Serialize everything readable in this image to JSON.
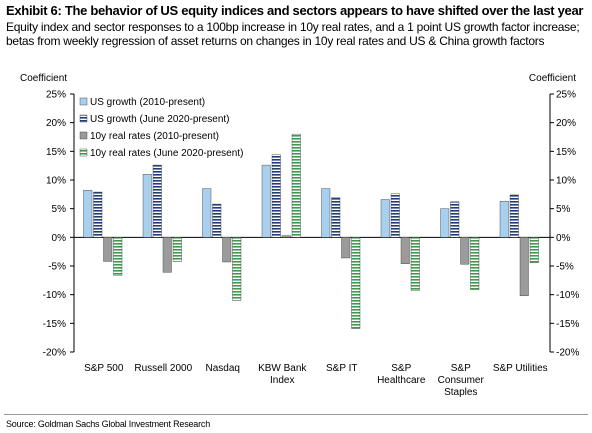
{
  "exhibit": {
    "title": "Exhibit 6: The behavior of US equity indices and sectors appears to have shifted over the last year",
    "subtitle": "Equity index and sector responses to a 100bp increase in 10y real rates, and a 1 point US growth factor increase; betas from weekly regression of asset returns on changes in 10y real rates and US & China growth factors",
    "source": "Source: Goldman Sachs Global Investment Research"
  },
  "chart_data": {
    "type": "bar",
    "left_axis_label": "Coefficient",
    "right_axis_label": "Coefficient",
    "ylim": [
      -20,
      25
    ],
    "yticks": [
      "25%",
      "20%",
      "15%",
      "10%",
      "5%",
      "0%",
      "-5%",
      "-10%",
      "-15%",
      "-20%"
    ],
    "ytick_values": [
      25,
      20,
      15,
      10,
      5,
      0,
      -5,
      -10,
      -15,
      -20
    ],
    "categories": [
      [
        "S&P 500"
      ],
      [
        "Russell 2000"
      ],
      [
        "Nasdaq"
      ],
      [
        "KBW Bank",
        "Index"
      ],
      [
        "S&P IT"
      ],
      [
        "S&P",
        "Healthcare"
      ],
      [
        "S&P",
        "Consumer",
        "Staples"
      ],
      [
        "S&P Utilities"
      ]
    ],
    "series": [
      {
        "name": "US growth (2010-present)",
        "style": "solid",
        "color": "#a9cfee",
        "values": [
          8.2,
          11.0,
          8.5,
          12.6,
          8.5,
          6.6,
          5.0,
          6.3
        ]
      },
      {
        "name": "US growth  (June 2020-present)",
        "style": "hstripe",
        "color": "#1f3d7a",
        "values": [
          7.9,
          12.6,
          5.8,
          14.4,
          6.9,
          7.6,
          6.2,
          7.4
        ]
      },
      {
        "name": "10y real rates (2010-present)",
        "style": "solid",
        "color": "#9b9b9b",
        "values": [
          -4.2,
          -6.1,
          -4.3,
          0.3,
          -3.6,
          -4.6,
          -4.7,
          -10.2
        ]
      },
      {
        "name": "10y real rates (June 2020-present)",
        "style": "hstripe",
        "color": "#3f9a4e",
        "values": [
          -6.6,
          -4.2,
          -11.0,
          18.0,
          -15.9,
          -9.3,
          -9.1,
          -4.4
        ]
      }
    ],
    "legend_position": "top-left",
    "grid": false
  }
}
